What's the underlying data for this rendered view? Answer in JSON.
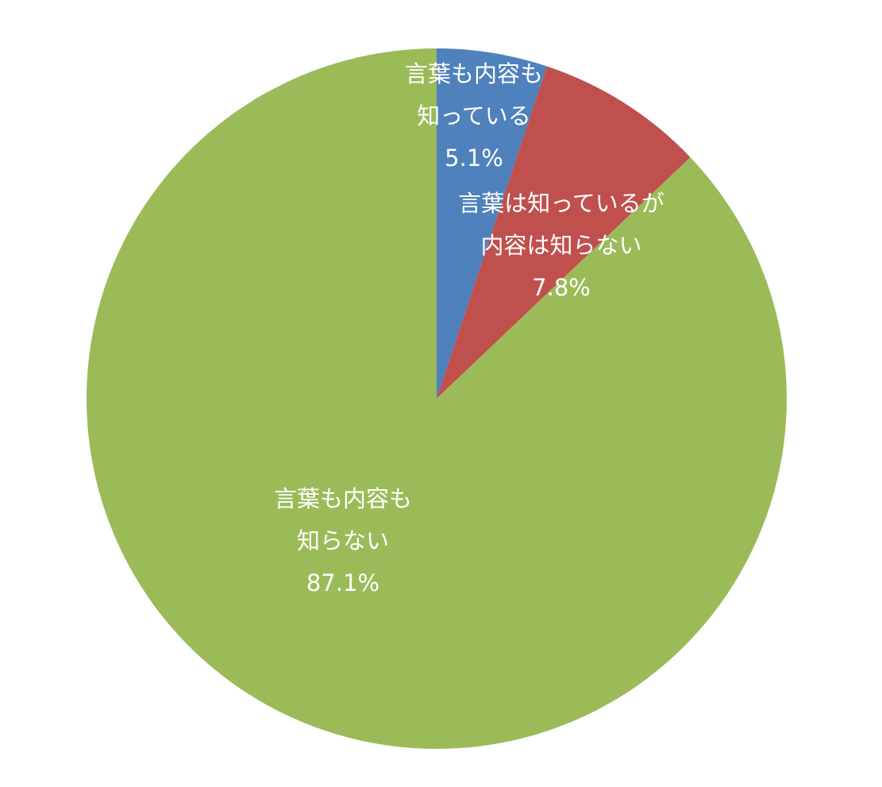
{
  "chart_data": {
    "type": "pie",
    "categories": [
      [
        "言葉も内容も",
        "知っている"
      ],
      [
        "言葉は知っているが",
        "内容は知らない"
      ],
      [
        "言葉も内容も",
        "知らない"
      ]
    ],
    "values": [
      5.1,
      7.8,
      87.1
    ],
    "value_labels": [
      "5.1%",
      "7.8%",
      "87.1%"
    ],
    "colors": [
      "#4f81bd",
      "#c0504d",
      "#9bbb59"
    ]
  }
}
